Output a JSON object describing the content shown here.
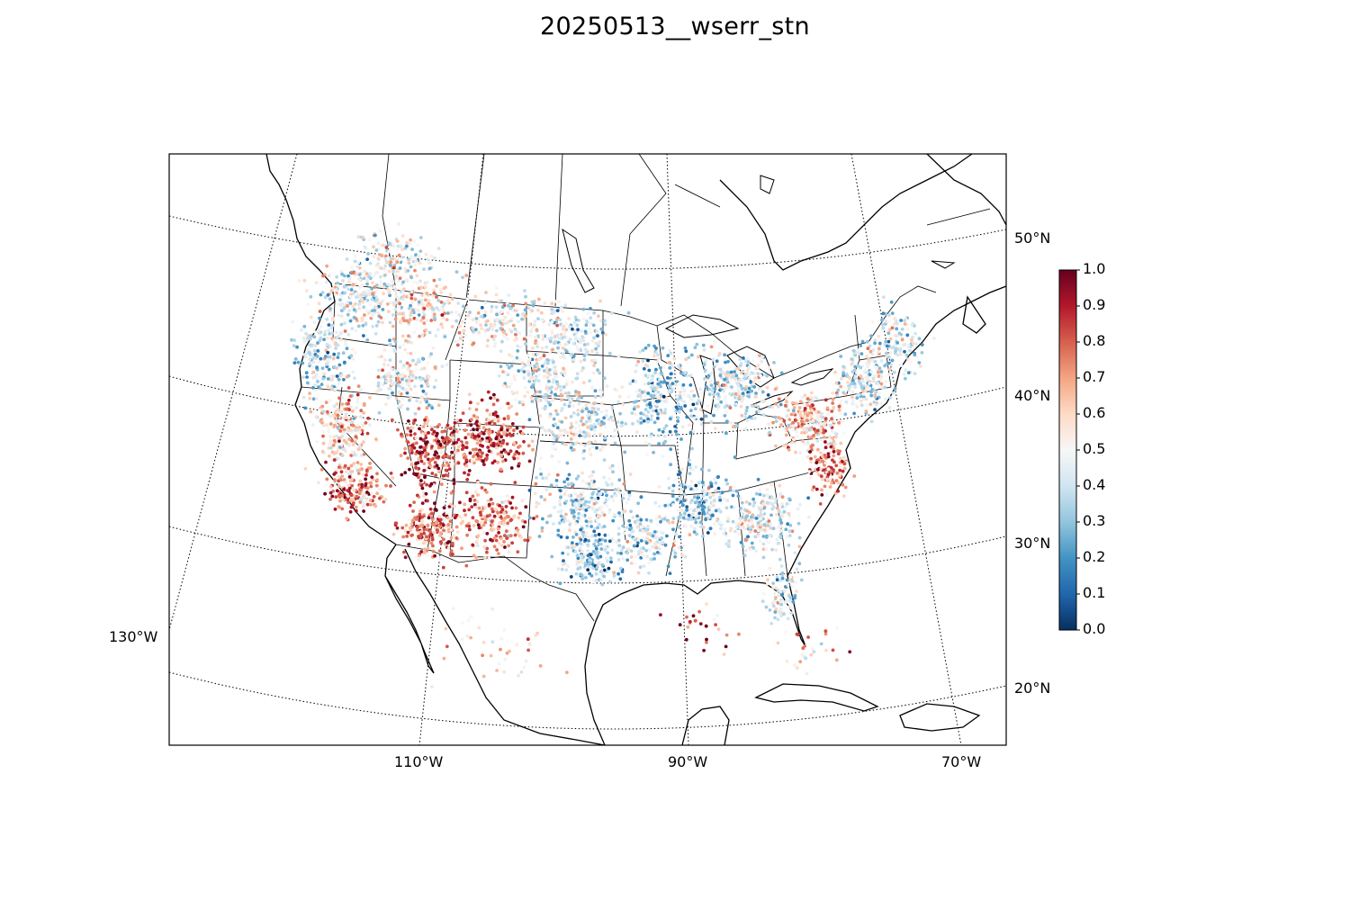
{
  "figure": {
    "title": "20250513__wserr_stn"
  },
  "map": {
    "projection": "lambert-conformal-conic",
    "graticule": {
      "lon_labels": [
        "130°W",
        "110°W",
        "90°W",
        "70°W"
      ],
      "lat_labels": [
        "50°N",
        "40°N",
        "30°N",
        "20°N"
      ]
    },
    "features": [
      "coastlines",
      "country-borders",
      "state-borders",
      "lakes"
    ]
  },
  "colorbar": {
    "colormap": "RdBu_r",
    "min": 0.0,
    "max": 1.0,
    "ticks": [
      "0.0",
      "0.1",
      "0.2",
      "0.3",
      "0.4",
      "0.5",
      "0.6",
      "0.7",
      "0.8",
      "0.9",
      "1.0"
    ],
    "colors": {
      "low": "#053061",
      "mid": "#f7f7f7",
      "high": "#67001f"
    }
  },
  "chart_data": {
    "type": "scatter",
    "title": "20250513__wserr_stn",
    "value_range": [
      0,
      1
    ],
    "description_of_pattern": "Station values; high values (dark red) concentrated in Utah, Colorado, Arizona, New Mexico and southern California; low values (blue) widespread across the Midwest, Great Lakes and Southeast; mixed values in the Pacific Northwest, Texas and Mid-Atlantic."
  }
}
